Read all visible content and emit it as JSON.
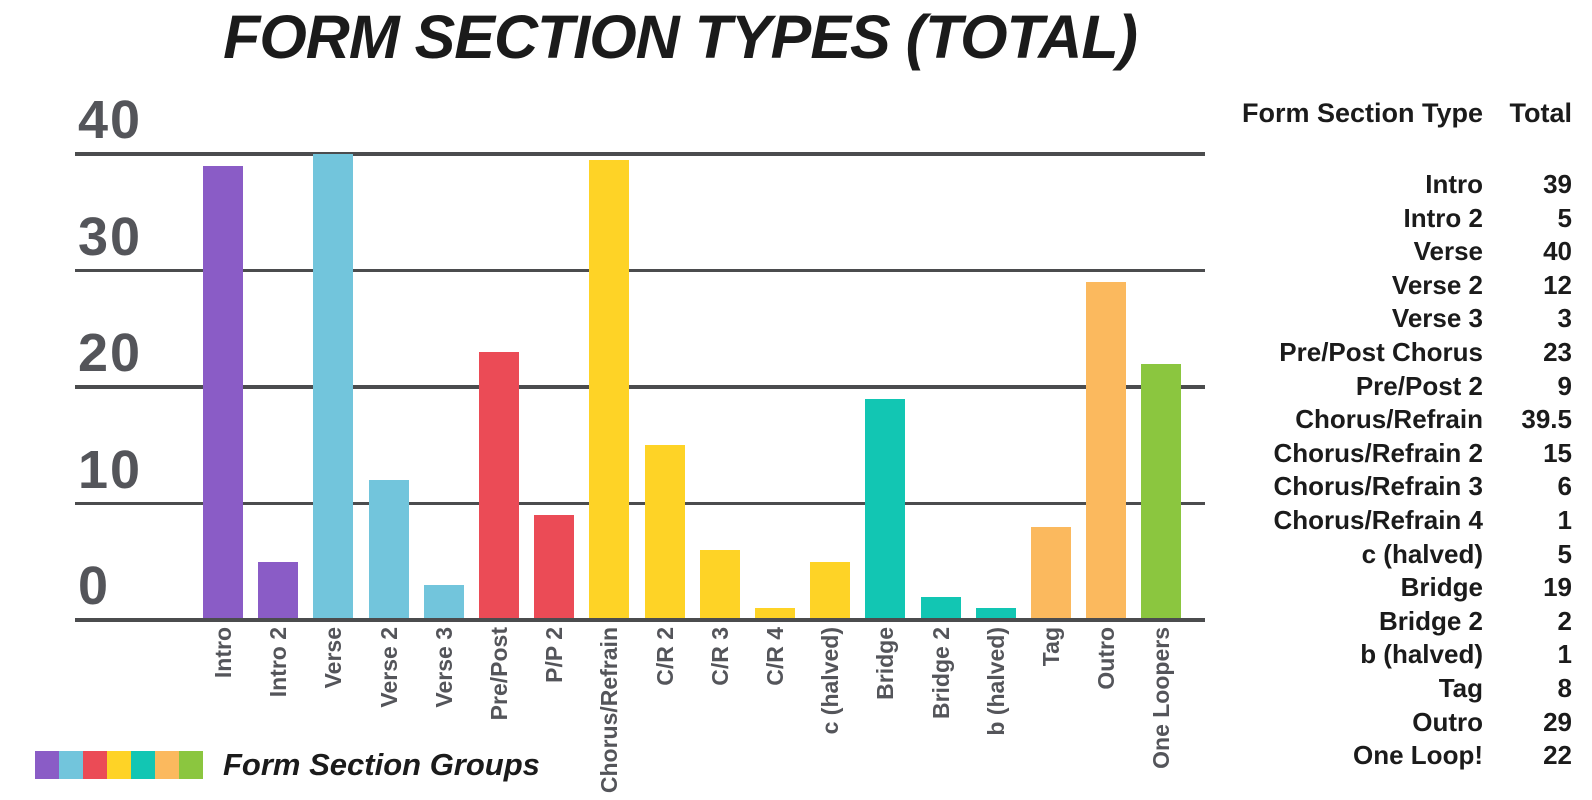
{
  "title": "FORM SECTION TYPES (TOTAL)",
  "chart_data": {
    "type": "bar",
    "title": "FORM SECTION TYPES (TOTAL)",
    "xlabel": "",
    "ylabel": "",
    "ylim": [
      0,
      40
    ],
    "yticks": [
      40,
      30,
      20,
      10,
      0
    ],
    "grid": "horizontal",
    "categories": [
      "Intro",
      "Intro 2",
      "Verse",
      "Verse 2",
      "Verse 3",
      "Pre/Post",
      "P/P 2",
      "Chorus/Refrain",
      "C/R 2",
      "C/R 3",
      "C/R 4",
      "c (halved)",
      "Bridge",
      "Bridge 2",
      "b (halved)",
      "Tag",
      "Outro",
      "One Loopers"
    ],
    "values": [
      39,
      5,
      40,
      12,
      3,
      23,
      9,
      39.5,
      15,
      6,
      1,
      5,
      19,
      2,
      1,
      8,
      29,
      22
    ],
    "bar_colors": [
      "#8A5CC6",
      "#8A5CC6",
      "#72C5DC",
      "#72C5DC",
      "#72C5DC",
      "#EB4B56",
      "#EB4B56",
      "#FED326",
      "#FED326",
      "#FED326",
      "#FED326",
      "#FED326",
      "#12C6B3",
      "#12C6B3",
      "#12C6B3",
      "#FBB95E",
      "#FBB95E",
      "#8BC63F"
    ],
    "legend": {
      "label": "Form Section Groups",
      "position": "bottom-left",
      "swatch_colors": [
        "#8A5CC6",
        "#72C5DC",
        "#EB4B56",
        "#FED326",
        "#12C6B3",
        "#FBB95E",
        "#8BC63F"
      ]
    }
  },
  "table": {
    "headers": {
      "type": "Form Section Type",
      "total": "Total"
    },
    "rows": [
      {
        "label": "Intro",
        "total": "39"
      },
      {
        "label": "Intro 2",
        "total": "5"
      },
      {
        "label": "Verse",
        "total": "40"
      },
      {
        "label": "Verse 2",
        "total": "12"
      },
      {
        "label": "Verse 3",
        "total": "3"
      },
      {
        "label": "Pre/Post Chorus",
        "total": "23"
      },
      {
        "label": "Pre/Post 2",
        "total": "9"
      },
      {
        "label": "Chorus/Refrain",
        "total": "39.5"
      },
      {
        "label": "Chorus/Refrain 2",
        "total": "15"
      },
      {
        "label": "Chorus/Refrain 3",
        "total": "6"
      },
      {
        "label": "Chorus/Refrain 4",
        "total": "1"
      },
      {
        "label": "c (halved)",
        "total": "5"
      },
      {
        "label": "Bridge",
        "total": "19"
      },
      {
        "label": "Bridge 2",
        "total": "2"
      },
      {
        "label": "b (halved)",
        "total": "1"
      },
      {
        "label": "Tag",
        "total": "8"
      },
      {
        "label": "Outro",
        "total": "29"
      },
      {
        "label": "One Loop!",
        "total": "22"
      }
    ]
  },
  "colors": {
    "background": "#FFFFFF",
    "gridline": "#4B4C4E",
    "axis_text": "#54555A",
    "text": "#1B1B1B"
  }
}
